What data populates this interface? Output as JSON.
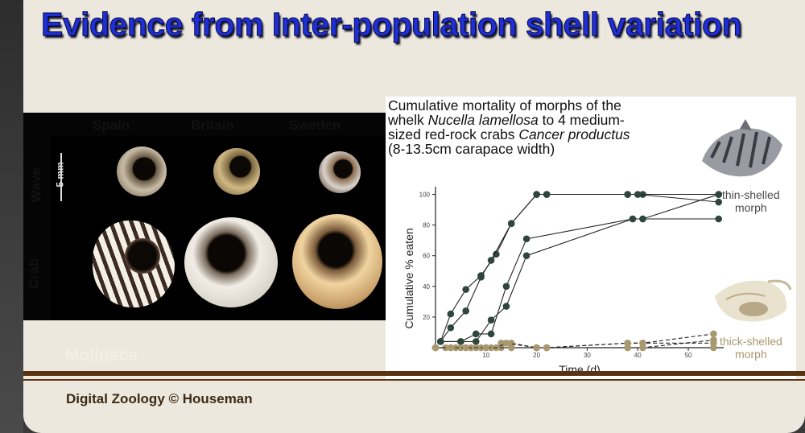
{
  "slide": {
    "title": "Evidence from Inter-population shell variation",
    "section_label": "Molluscs",
    "footer": "Digital Zoology © Houseman"
  },
  "photo": {
    "columns": [
      "Spain",
      "Britain",
      "Sweden"
    ],
    "rows": [
      "Wave",
      "Crab"
    ],
    "scale_label": "5 mm"
  },
  "chart_caption": {
    "line1": "Cumulative mortality of morphs of the",
    "line2_a": "whelk ",
    "line2_italic": "Nucella lamellosa",
    "line2_b": " to 4 medium-",
    "line3_a": "sized red-rock crabs ",
    "line3_italic": "Cancer productus",
    "line4": "(8-13.5cm carapace width)"
  },
  "chart_data": {
    "type": "line",
    "xlabel": "Time (d)",
    "ylabel": "Cumulative % eaten",
    "xlim": [
      0,
      57
    ],
    "ylim": [
      0,
      105
    ],
    "x_ticks": [
      10,
      20,
      30,
      40,
      50
    ],
    "y_ticks": [
      20,
      40,
      60,
      80,
      100
    ],
    "annotations": [
      {
        "text_line1": "thin-shelled",
        "text_line2": "morph",
        "color": "#4a4a4a"
      },
      {
        "text_line1": "thick-shelled",
        "text_line2": "morph",
        "color": "#a89870"
      }
    ],
    "series": [
      {
        "group": "thin",
        "color": "#2f463d",
        "style": "solid",
        "x": [
          1,
          3,
          6,
          9,
          12,
          15,
          20,
          22,
          38,
          41,
          56
        ],
        "y": [
          4,
          22,
          38,
          47,
          61,
          81,
          100,
          100,
          100,
          100,
          100
        ]
      },
      {
        "group": "thin",
        "color": "#2f463d",
        "style": "solid",
        "x": [
          1,
          3,
          6,
          9,
          11,
          15,
          20,
          22,
          38,
          40,
          56
        ],
        "y": [
          4,
          13,
          24,
          46,
          57,
          81,
          100,
          100,
          100,
          100,
          95
        ]
      },
      {
        "group": "thin",
        "color": "#2f463d",
        "style": "solid",
        "x": [
          1,
          5,
          8,
          11,
          14,
          18,
          39,
          41,
          56
        ],
        "y": [
          4,
          4,
          9,
          9,
          40,
          71,
          84,
          84,
          84
        ]
      },
      {
        "group": "thin",
        "color": "#2f463d",
        "style": "solid",
        "x": [
          1,
          5,
          8,
          11,
          14,
          18,
          39,
          41,
          56
        ],
        "y": [
          4,
          4,
          4,
          18,
          27,
          60,
          84,
          84,
          100
        ]
      },
      {
        "group": "thick",
        "color": "#a89870",
        "style": "dashed",
        "x": [
          0,
          3,
          6,
          9,
          11,
          13,
          15,
          20,
          22,
          38,
          41,
          55
        ],
        "y": [
          0,
          0,
          0,
          0,
          0,
          3,
          3,
          0,
          0,
          3,
          3,
          9
        ]
      },
      {
        "group": "thick",
        "color": "#a89870",
        "style": "dashed",
        "x": [
          0,
          2,
          5,
          8,
          10,
          13,
          15,
          20,
          22,
          38,
          41,
          55
        ],
        "y": [
          0,
          0,
          0,
          0,
          0,
          0,
          0,
          0,
          0,
          0,
          0,
          5
        ]
      },
      {
        "group": "thick",
        "color": "#a89870",
        "style": "dashed",
        "x": [
          0,
          4,
          7,
          12,
          14,
          20,
          22,
          38,
          41,
          55
        ],
        "y": [
          0,
          0,
          0,
          0,
          3,
          0,
          0,
          3,
          3,
          3
        ]
      },
      {
        "group": "thick",
        "color": "#a89870",
        "style": "dashed",
        "x": [
          0,
          3,
          6,
          10,
          15,
          20,
          22,
          38,
          41,
          55
        ],
        "y": [
          0,
          0,
          0,
          0,
          0,
          0,
          0,
          0,
          0,
          0
        ]
      }
    ]
  }
}
